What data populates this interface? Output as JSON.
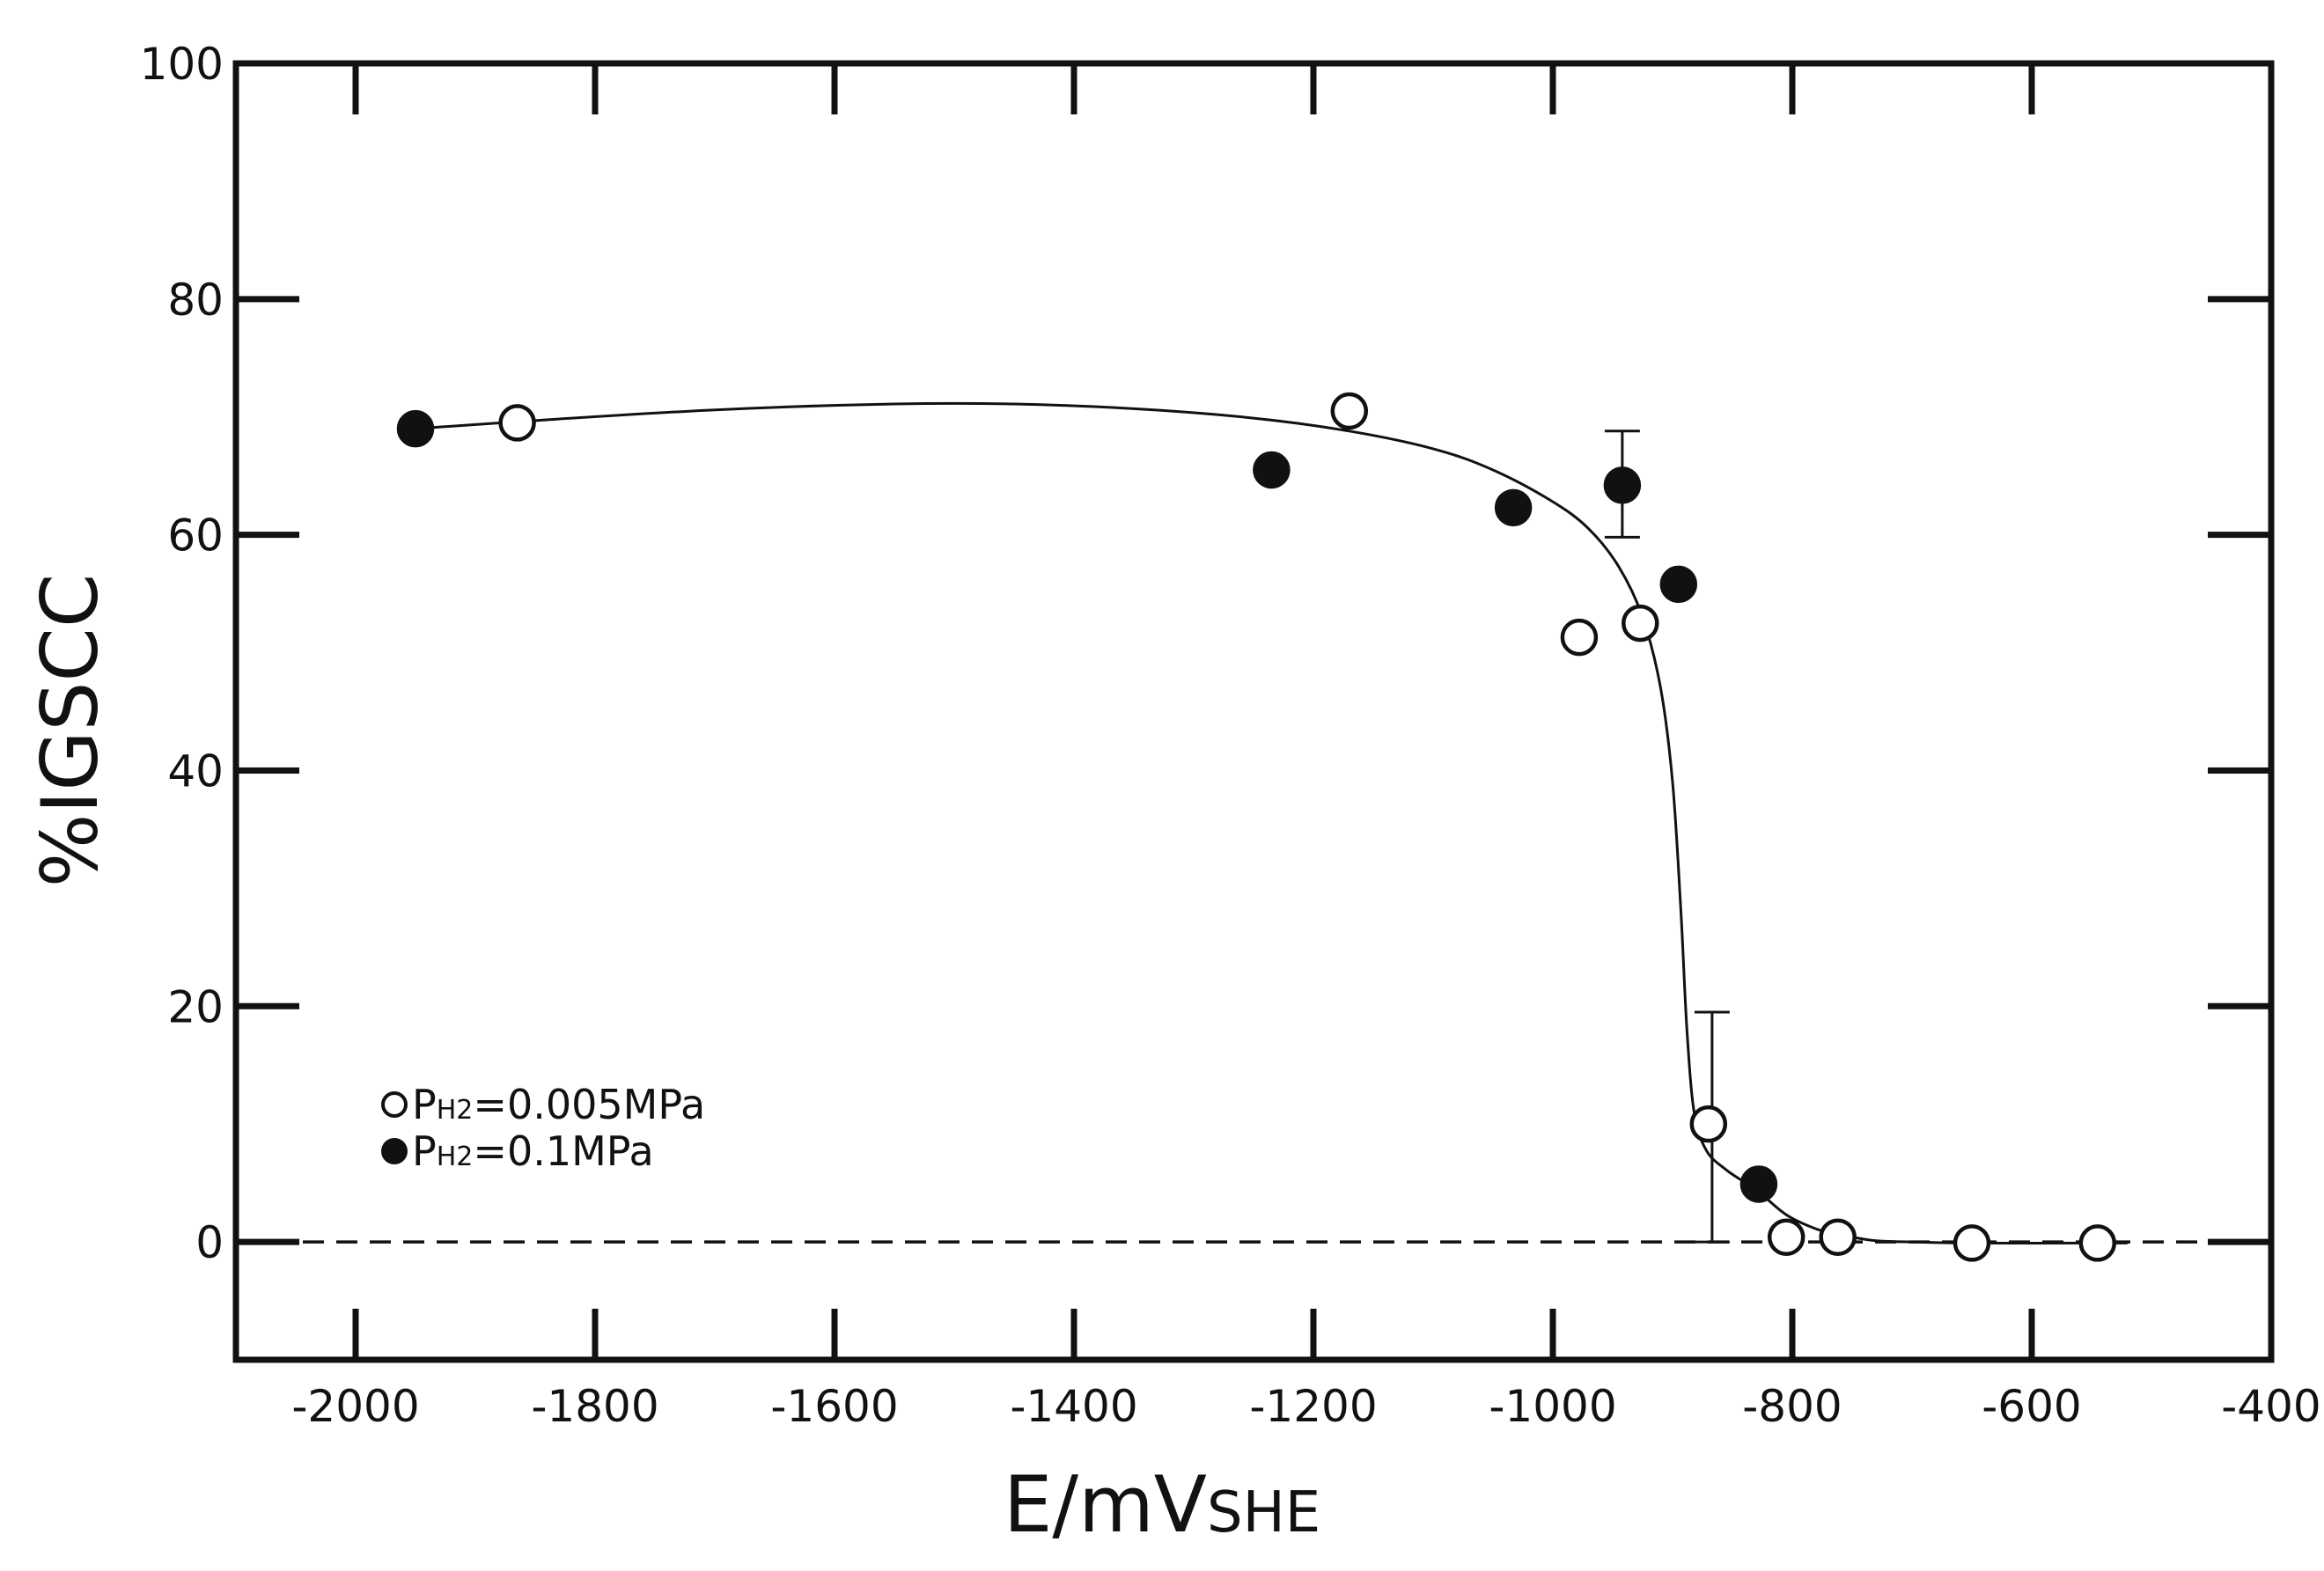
{
  "chart_data": {
    "type": "scatter",
    "xlabel": "E/mV",
    "xlabel_subscript": "SHE",
    "ylabel": "%IGSCC",
    "xlim": [
      -2100,
      -400
    ],
    "ylim": [
      -10,
      100
    ],
    "x_ticks": [
      -2000,
      -1800,
      -1600,
      -1400,
      -1200,
      -1000,
      -800,
      -600,
      -400
    ],
    "y_ticks": [
      0,
      20,
      40,
      60,
      80,
      100
    ],
    "grid": false,
    "legend_position": "lower-left",
    "zero_reference_line": "dashed",
    "series": [
      {
        "name": "P",
        "name_subscript": "H2",
        "name_suffix": "=0.005MPa",
        "marker": "open-circle",
        "points": [
          {
            "x": -1865,
            "y": 69.5
          },
          {
            "x": -1170,
            "y": 70.5
          },
          {
            "x": -978,
            "y": 51.3
          },
          {
            "x": -927,
            "y": 52.5
          },
          {
            "x": -870,
            "y": 10
          },
          {
            "x": -805,
            "y": 0.4
          },
          {
            "x": -762,
            "y": 0.4
          },
          {
            "x": -650,
            "y": -0.1
          },
          {
            "x": -545,
            "y": -0.1
          }
        ]
      },
      {
        "name": "P",
        "name_subscript": "H2",
        "name_suffix": "=0.1MPa",
        "marker": "filled-circle",
        "points": [
          {
            "x": -1950,
            "y": 69
          },
          {
            "x": -1235,
            "y": 65.5
          },
          {
            "x": -1033,
            "y": 62.3
          },
          {
            "x": -942,
            "y": 64.2
          },
          {
            "x": -895,
            "y": 55.8
          },
          {
            "x": -828,
            "y": 4.9
          }
        ]
      }
    ],
    "error_bars": [
      {
        "x": -942,
        "low": 59.8,
        "high": 68.8
      },
      {
        "x": -867,
        "low": 0,
        "high": 19.5
      }
    ],
    "fit_curve": [
      [
        -1950,
        69
      ],
      [
        -1865,
        69.6
      ],
      [
        -1700,
        70.6
      ],
      [
        -1550,
        71.1
      ],
      [
        -1450,
        71.1
      ],
      [
        -1350,
        70.7
      ],
      [
        -1250,
        69.9
      ],
      [
        -1170,
        68.8
      ],
      [
        -1100,
        67.3
      ],
      [
        -1050,
        65.5
      ],
      [
        -1000,
        62.8
      ],
      [
        -970,
        60.5
      ],
      [
        -945,
        57.3
      ],
      [
        -925,
        53
      ],
      [
        -910,
        47
      ],
      [
        -900,
        39
      ],
      [
        -893,
        28
      ],
      [
        -888,
        18
      ],
      [
        -882,
        11
      ],
      [
        -872,
        7.8
      ],
      [
        -855,
        6.1
      ],
      [
        -830,
        4.4
      ],
      [
        -805,
        2.3
      ],
      [
        -780,
        1.1
      ],
      [
        -760,
        0.6
      ],
      [
        -730,
        0.1
      ],
      [
        -700,
        0
      ],
      [
        -650,
        -0.1
      ],
      [
        -545,
        -0.1
      ],
      [
        -520,
        -0.1
      ]
    ]
  }
}
